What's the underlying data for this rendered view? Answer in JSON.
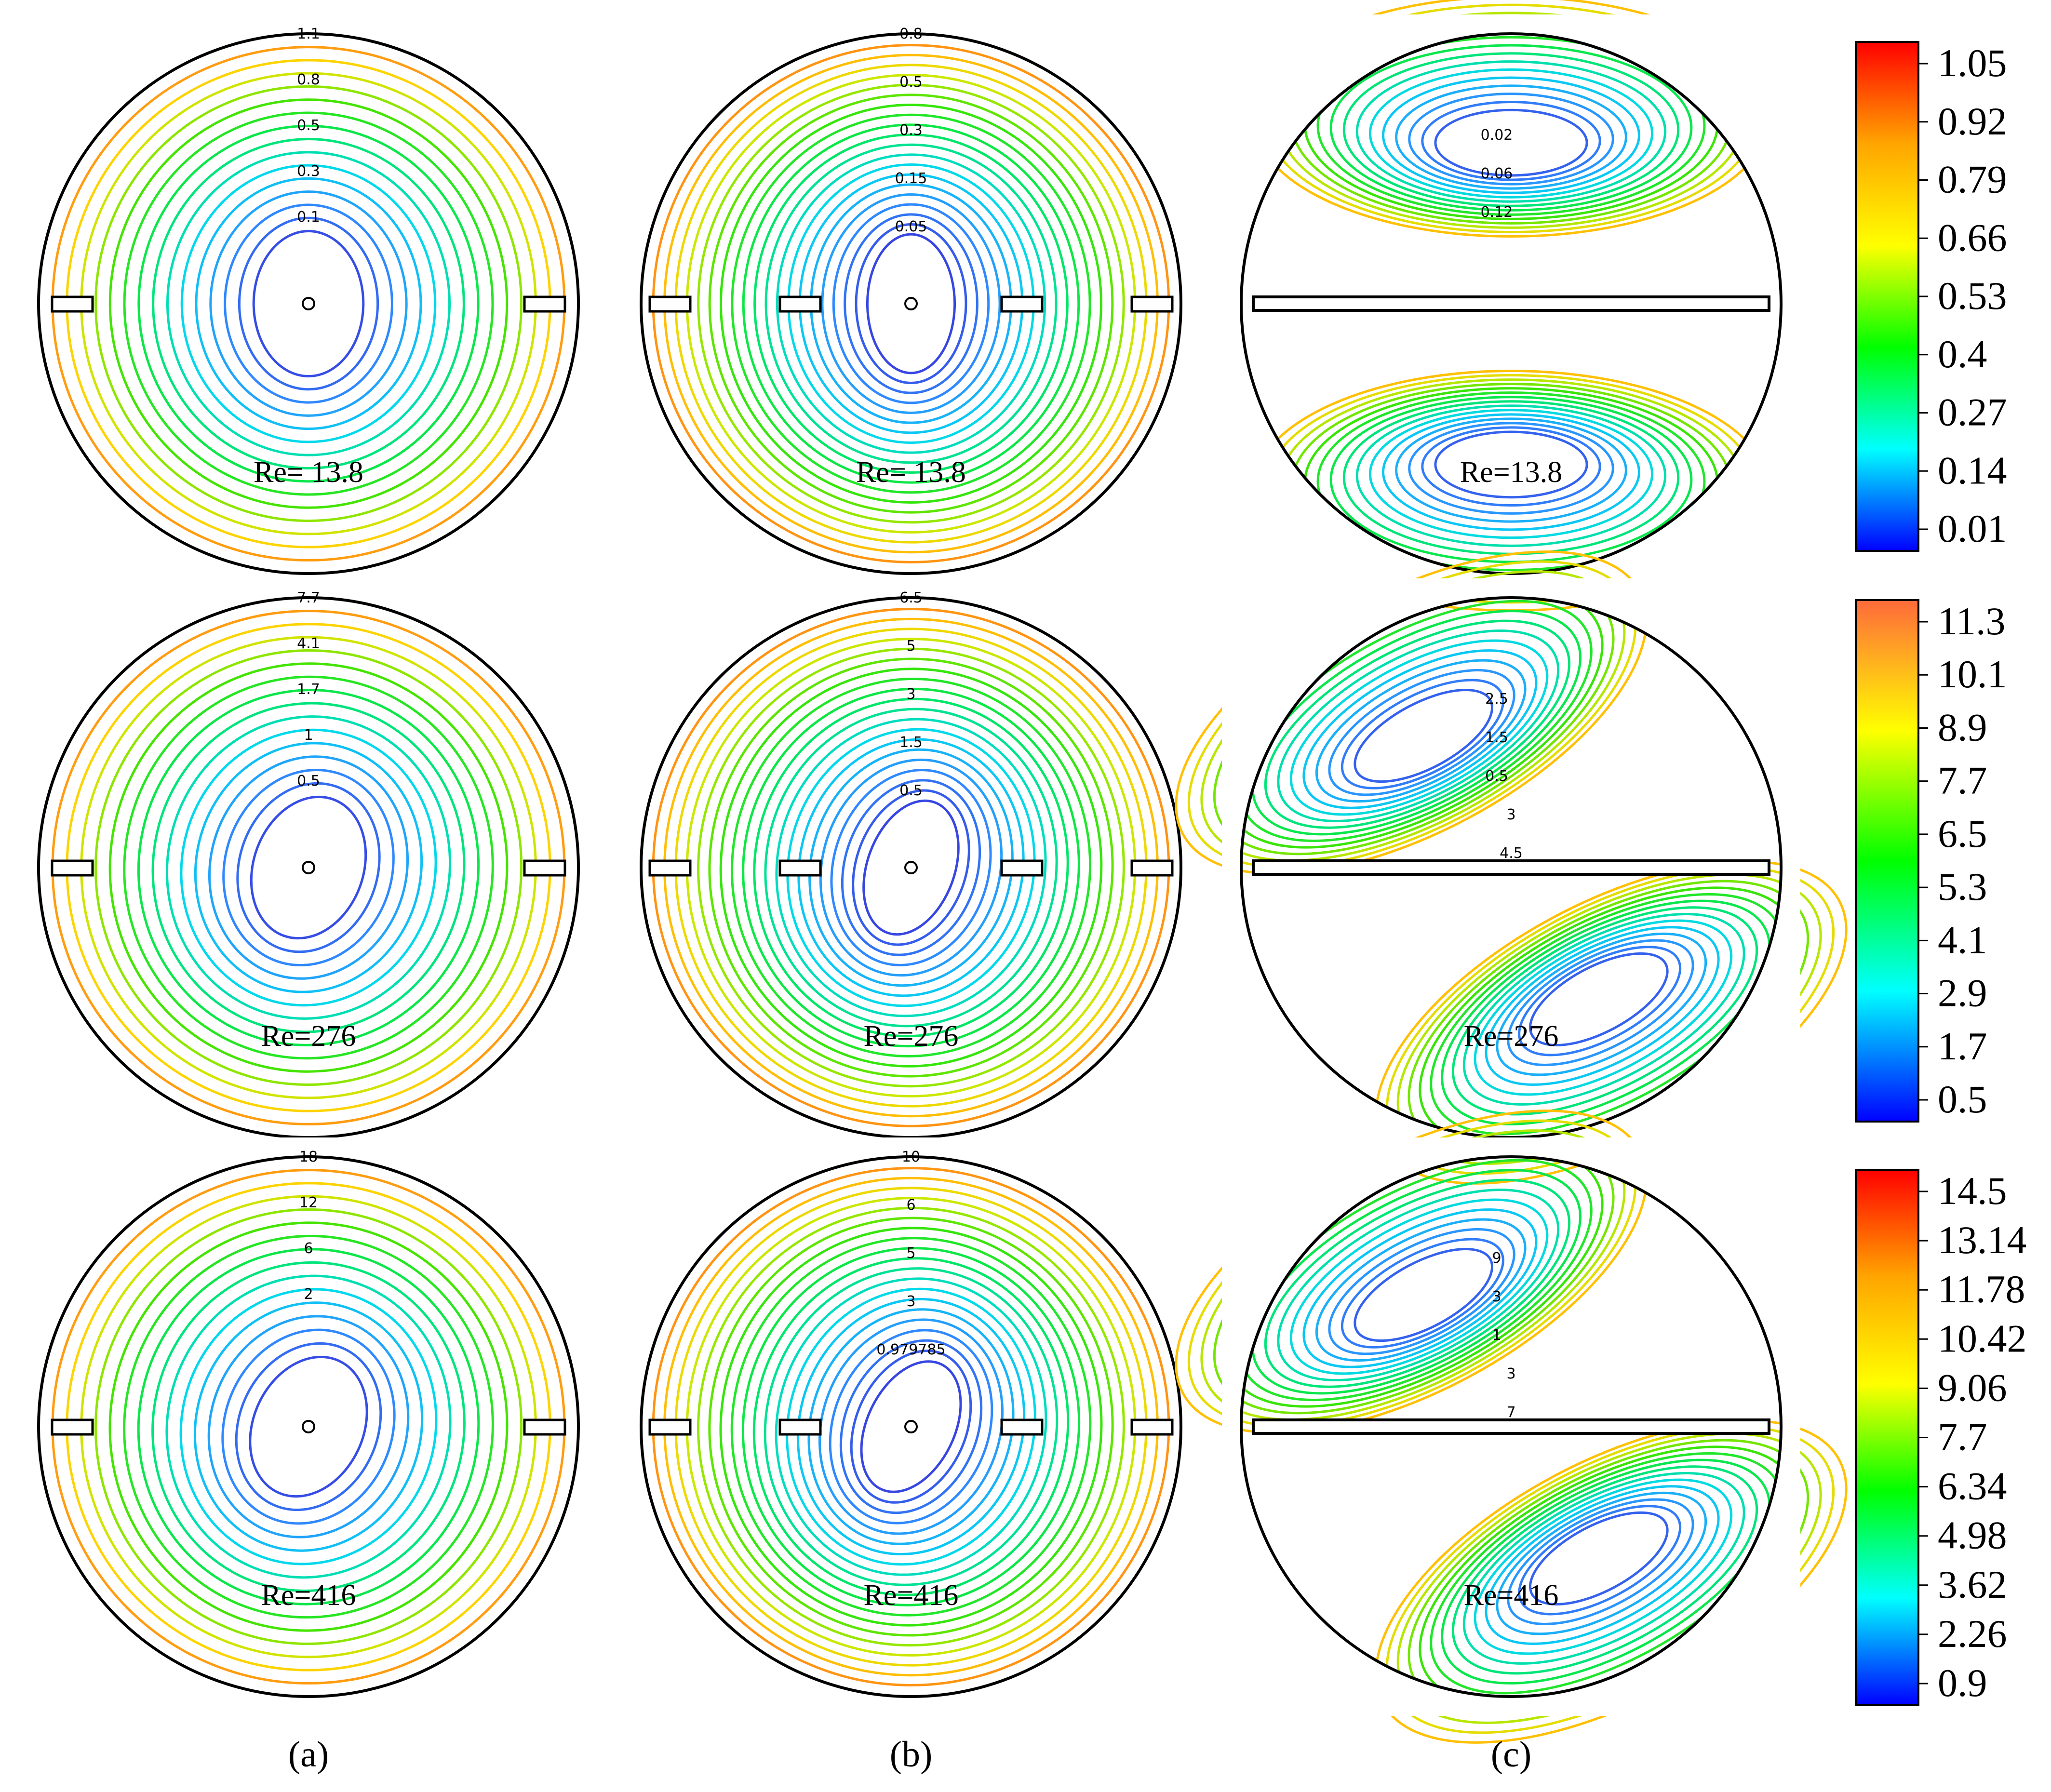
{
  "figure": {
    "captions": [
      "(a)",
      "(b)",
      "(c)"
    ],
    "rows": [
      {
        "re_label": "Re= 13.8",
        "re_label_c": "Re=13.8",
        "panel_a_labels": [
          "1.1",
          "0.8",
          "0.5",
          "0.3",
          "0.1"
        ],
        "panel_b_labels": [
          "0.8",
          "0.5",
          "0.3",
          "0.15",
          "0.05"
        ],
        "panel_c_labels": [
          "0.02",
          "0.06",
          "0.12"
        ],
        "colorbar": {
          "ticks": [
            "1.05",
            "0.92",
            "0.79",
            "0.66",
            "0.53",
            "0.4",
            "0.27",
            "0.14",
            "0.01"
          ],
          "colors": [
            "#ff0000",
            "#ffa500",
            "#ffff00",
            "#00ff00",
            "#00ffff",
            "#0000ff"
          ]
        }
      },
      {
        "re_label": "Re=276",
        "re_label_c": "Re=276",
        "panel_a_labels": [
          "7.7",
          "4.1",
          "1.7",
          "1",
          "0.5"
        ],
        "panel_b_labels": [
          "6.5",
          "5",
          "3",
          "1.5",
          "0.5"
        ],
        "panel_c_labels": [
          "2.5",
          "1.5",
          "0.5",
          "3",
          "4.5"
        ],
        "colorbar": {
          "ticks": [
            "11.3",
            "10.1",
            "8.9",
            "7.7",
            "6.5",
            "5.3",
            "4.1",
            "2.9",
            "1.7",
            "0.5"
          ],
          "colors": [
            "#ff6a3a",
            "#ffff00",
            "#00ff00",
            "#00ffff",
            "#0000ff"
          ]
        }
      },
      {
        "re_label": "Re=416",
        "re_label_c": "Re=416",
        "panel_a_labels": [
          "18",
          "12",
          "6",
          "2"
        ],
        "panel_b_labels": [
          "10",
          "6",
          "5",
          "3",
          "0.979785"
        ],
        "panel_c_labels": [
          "9",
          "3",
          "1",
          "3",
          "7"
        ],
        "colorbar": {
          "ticks": [
            "14.5",
            "13.14",
            "11.78",
            "10.42",
            "9.06",
            "7.7",
            "6.34",
            "4.98",
            "3.62",
            "2.26",
            "0.9"
          ],
          "colors": [
            "#ff0000",
            "#ffa500",
            "#ffff00",
            "#00ff00",
            "#00ffff",
            "#0000ff"
          ]
        }
      }
    ]
  }
}
